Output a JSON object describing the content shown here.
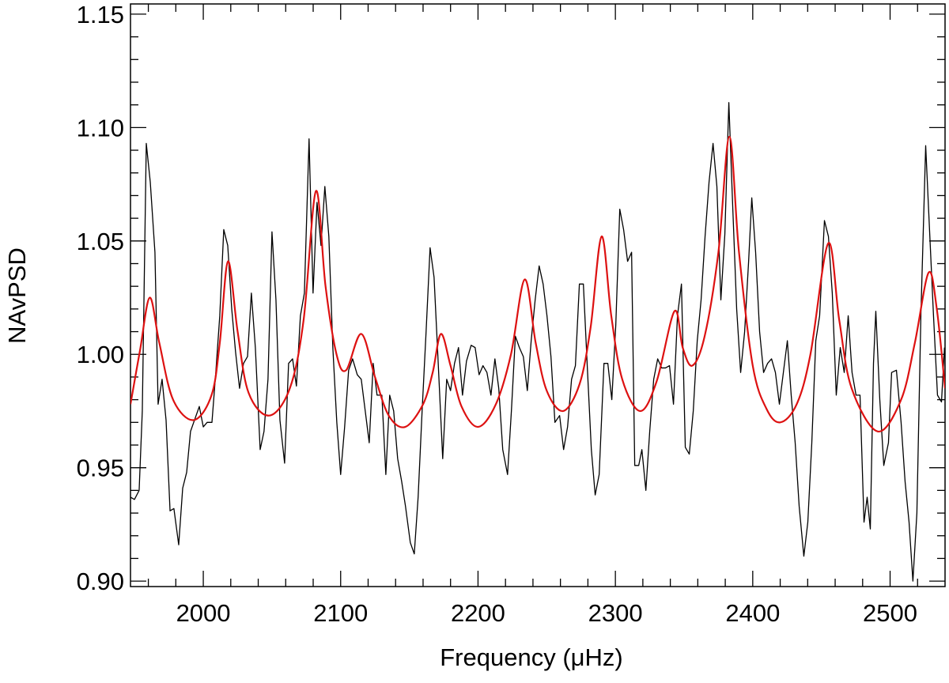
{
  "chart_data": {
    "type": "line",
    "xlabel": "Frequency (μHz)",
    "ylabel": "NAvPSD",
    "xlim": [
      1947,
      2540
    ],
    "ylim": [
      0.8976,
      1.1545
    ],
    "xticks": [
      2000,
      2100,
      2200,
      2300,
      2400,
      2500
    ],
    "xminor_ticks": [
      1960,
      1980,
      2020,
      2040,
      2060,
      2080,
      2120,
      2140,
      2160,
      2180,
      2220,
      2240,
      2260,
      2280,
      2320,
      2340,
      2360,
      2380,
      2420,
      2440,
      2460,
      2480,
      2520
    ],
    "yticks": [
      {
        "value": 0.9,
        "label": "0.90"
      },
      0.95,
      {
        "value": 1.0,
        "label": "1.00"
      },
      1.05,
      {
        "value": 1.1,
        "label": "1.10"
      },
      1.15
    ],
    "yminor_ticks": [
      0.91,
      0.92,
      0.93,
      0.94,
      0.96,
      0.97,
      0.98,
      0.99,
      1.01,
      1.02,
      1.03,
      1.04,
      1.06,
      1.07,
      1.08,
      1.09,
      1.11,
      1.12,
      1.13,
      1.14
    ],
    "series": [
      {
        "color": "#000000",
        "smooth": false,
        "x": [
          1947.0,
          1949.9,
          1953.3,
          1955.6,
          1958.5,
          1961.4,
          1964.8,
          1967.1,
          1970.0,
          1972.9,
          1975.8,
          1978.6,
          1982.1,
          1985.0,
          1987.9,
          1990.7,
          1993.6,
          1997.1,
          2000.0,
          2002.8,
          2006.3,
          2009.1,
          2012.0,
          2014.9,
          2017.8,
          2020.7,
          2023.5,
          2026.4,
          2029.3,
          2032.2,
          2035.0,
          2037.9,
          2041.4,
          2044.2,
          2047.1,
          2050.0,
          2052.9,
          2055.8,
          2059.2,
          2062.1,
          2065.0,
          2067.8,
          2070.7,
          2073.6,
          2077.0,
          2079.9,
          2082.8,
          2085.7,
          2088.5,
          2091.4,
          2094.3,
          2097.2,
          2100.0,
          2102.9,
          2105.8,
          2108.7,
          2112.1,
          2115.0,
          2117.9,
          2120.8,
          2123.7,
          2126.5,
          2130.0,
          2132.9,
          2135.7,
          2138.6,
          2141.5,
          2144.4,
          2147.2,
          2150.7,
          2153.6,
          2156.4,
          2159.3,
          2162.2,
          2165.1,
          2168.0,
          2170.8,
          2174.3,
          2177.2,
          2180.0,
          2182.9,
          2185.8,
          2188.7,
          2191.6,
          2195.0,
          2197.9,
          2200.8,
          2203.6,
          2206.5,
          2209.4,
          2212.3,
          2215.1,
          2218.0,
          2221.5,
          2224.3,
          2227.2,
          2230.1,
          2233.0,
          2235.9,
          2238.7,
          2241.6,
          2244.5,
          2247.4,
          2250.2,
          2253.1,
          2256.0,
          2259.4,
          2262.3,
          2265.2,
          2268.1,
          2270.9,
          2273.8,
          2276.7,
          2279.6,
          2282.5,
          2285.3,
          2288.2,
          2291.7,
          2294.5,
          2297.4,
          2300.3,
          2303.2,
          2306.0,
          2308.9,
          2311.8,
          2314.1,
          2317.0,
          2319.3,
          2322.2,
          2325.0,
          2327.9,
          2330.8,
          2333.7,
          2336.5,
          2339.4,
          2342.3,
          2345.2,
          2348.1,
          2350.9,
          2353.8,
          2356.7,
          2359.6,
          2362.4,
          2365.3,
          2368.2,
          2371.1,
          2373.9,
          2376.8,
          2379.7,
          2382.6,
          2385.5,
          2388.3,
          2391.2,
          2394.1,
          2397.0,
          2399.3,
          2402.1,
          2405.0,
          2407.9,
          2410.8,
          2413.7,
          2416.5,
          2419.4,
          2422.3,
          2425.2,
          2428.0,
          2430.9,
          2433.8,
          2437.2,
          2440.1,
          2443.0,
          2445.9,
          2448.7,
          2452.2,
          2455.1,
          2457.9,
          2460.8,
          2463.7,
          2466.6,
          2469.5,
          2472.3,
          2475.2,
          2478.1,
          2481.0,
          2483.3,
          2485.6,
          2487.9,
          2489.6,
          2492.5,
          2495.4,
          2498.8,
          2501.1,
          2504.6,
          2508.0,
          2510.9,
          2513.8,
          2516.6,
          2519.5,
          2522.4,
          2525.9,
          2528.7,
          2531.6,
          2534.5,
          2537.4,
          2539.6
        ],
        "values": [
          0.937,
          0.936,
          0.94,
          0.975,
          1.093,
          1.076,
          1.045,
          0.978,
          0.989,
          0.971,
          0.931,
          0.932,
          0.916,
          0.941,
          0.948,
          0.966,
          0.971,
          0.977,
          0.968,
          0.97,
          0.97,
          0.992,
          1.017,
          1.055,
          1.048,
          1.02,
          1.001,
          0.985,
          0.996,
          0.999,
          1.027,
          1.003,
          0.958,
          0.966,
          0.989,
          1.054,
          1.024,
          0.971,
          0.952,
          0.996,
          0.998,
          0.986,
          1.017,
          1.027,
          1.095,
          1.027,
          1.067,
          1.048,
          1.074,
          1.052,
          1.003,
          0.97,
          0.947,
          0.968,
          0.993,
          0.998,
          0.991,
          0.989,
          0.975,
          0.961,
          0.996,
          0.982,
          0.982,
          0.947,
          0.982,
          0.975,
          0.954,
          0.944,
          0.933,
          0.917,
          0.912,
          0.937,
          0.975,
          1.01,
          1.047,
          1.034,
          0.999,
          0.954,
          0.989,
          0.984,
          0.996,
          1.003,
          0.982,
          0.997,
          1.004,
          1.003,
          0.991,
          0.995,
          0.992,
          0.982,
          0.998,
          0.985,
          0.958,
          0.947,
          0.975,
          1.008,
          1.003,
          0.999,
          0.984,
          1.006,
          1.024,
          1.039,
          1.031,
          1.017,
          0.999,
          0.97,
          0.973,
          0.958,
          0.968,
          0.989,
          0.995,
          1.031,
          1.031,
          0.994,
          0.958,
          0.938,
          0.947,
          0.996,
          0.996,
          0.98,
          1.013,
          1.064,
          1.055,
          1.041,
          1.045,
          0.951,
          0.951,
          0.958,
          0.94,
          0.966,
          0.989,
          0.998,
          0.994,
          0.994,
          0.995,
          0.978,
          1.017,
          1.031,
          0.959,
          0.956,
          0.975,
          1.006,
          1.024,
          1.052,
          1.076,
          1.093,
          1.074,
          1.024,
          1.053,
          1.111,
          1.064,
          1.02,
          0.992,
          1.01,
          1.041,
          1.069,
          1.045,
          1.01,
          0.992,
          0.996,
          0.998,
          0.992,
          0.978,
          0.992,
          1.006,
          0.982,
          0.961,
          0.933,
          0.911,
          0.926,
          0.961,
          1.006,
          1.017,
          1.059,
          1.052,
          1.027,
          0.982,
          1.003,
          0.992,
          1.017,
          0.992,
          0.982,
          0.982,
          0.926,
          0.937,
          0.923,
          0.996,
          1.019,
          0.98,
          0.951,
          0.961,
          0.992,
          0.993,
          0.97,
          0.944,
          0.926,
          0.9,
          0.93,
          1.017,
          1.092,
          1.055,
          1.017,
          0.982,
          0.979,
          1.003
        ]
      },
      {
        "color": "#dd1111",
        "smooth": true,
        "x": [
          1947,
          1954,
          1961,
          1968,
          1978,
          1993,
          2006,
          2012,
          2018,
          2025,
          2033,
          2048,
          2063,
          2073,
          2082,
          2089,
          2097,
          2104,
          2115,
          2125,
          2135,
          2147,
          2160,
          2167,
          2173,
          2180,
          2188,
          2200,
          2213,
          2224,
          2234,
          2242,
          2250,
          2262,
          2274,
          2282,
          2290,
          2297,
          2305,
          2318,
          2330,
          2343,
          2349,
          2356,
          2365,
          2375,
          2383,
          2390,
          2400,
          2410,
          2420,
          2432,
          2442,
          2455,
          2463,
          2472,
          2491,
          2508,
          2518,
          2528,
          2534,
          2540
        ],
        "values": [
          0.978,
          1.002,
          1.025,
          1.005,
          0.98,
          0.971,
          0.982,
          1.005,
          1.041,
          1.01,
          0.983,
          0.973,
          0.985,
          1.015,
          1.072,
          1.03,
          1.0,
          0.993,
          1.009,
          0.99,
          0.973,
          0.968,
          0.978,
          0.992,
          1.009,
          0.995,
          0.977,
          0.968,
          0.978,
          1.0,
          1.033,
          1.005,
          0.984,
          0.975,
          0.987,
          1.012,
          1.052,
          1.017,
          0.989,
          0.975,
          0.988,
          1.019,
          1.003,
          0.995,
          1.008,
          1.045,
          1.096,
          1.045,
          0.995,
          0.976,
          0.97,
          0.978,
          1.0,
          1.049,
          1.015,
          0.985,
          0.966,
          0.98,
          1.005,
          1.036,
          1.02,
          0.985
        ]
      }
    ]
  }
}
